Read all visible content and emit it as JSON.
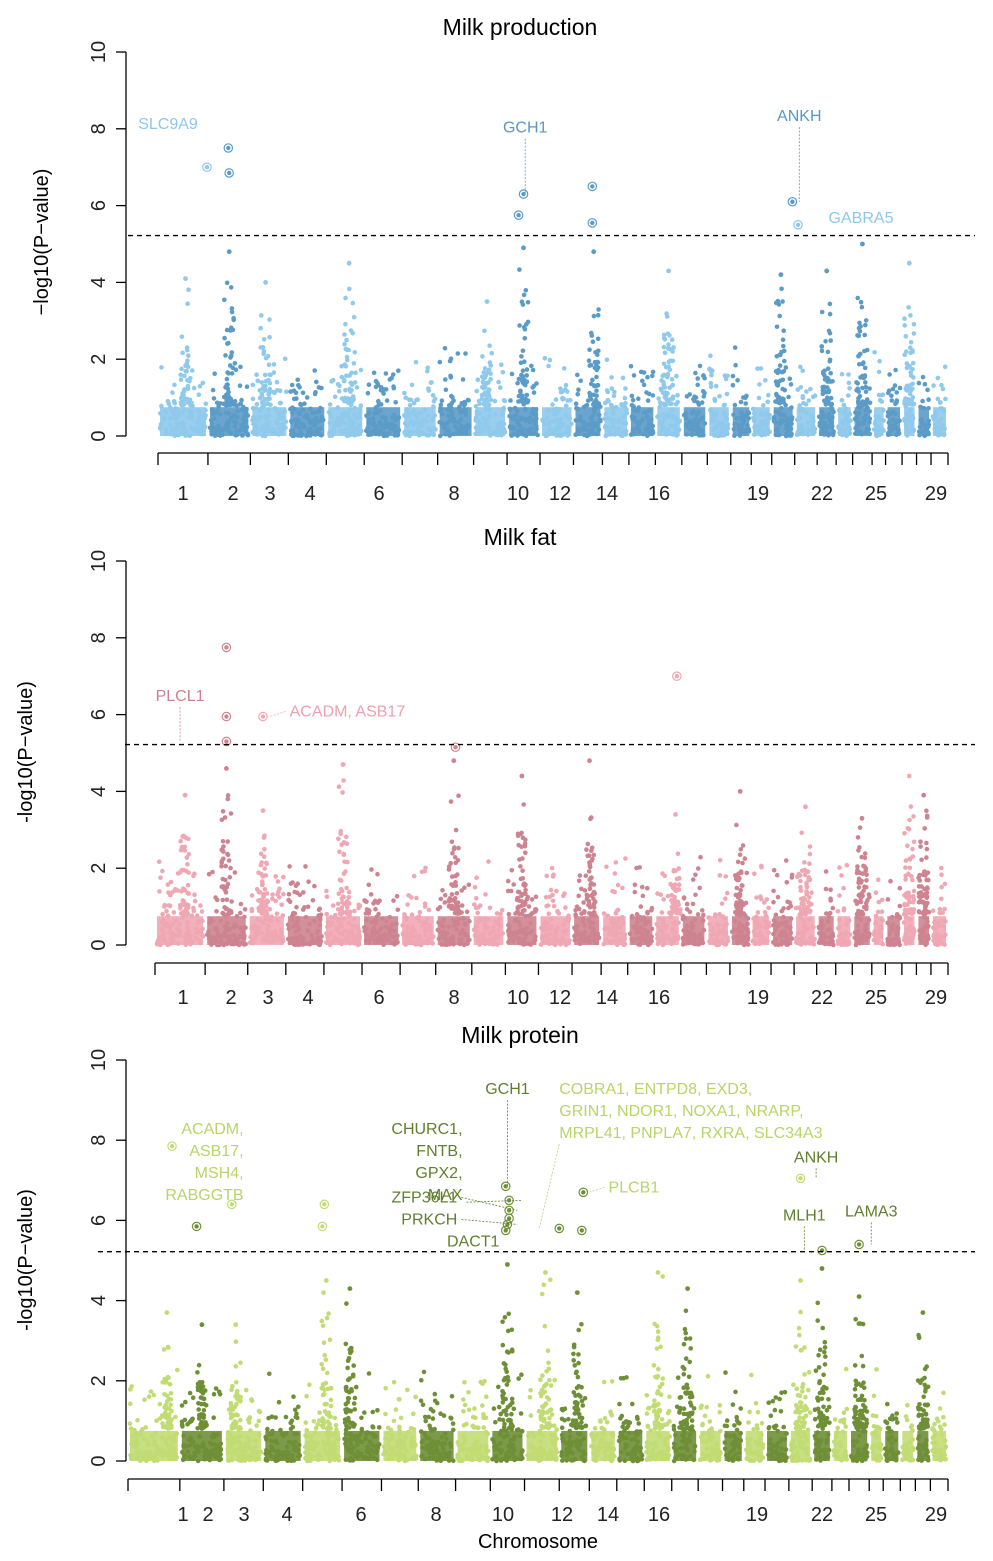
{
  "figure": {
    "xlabel": "Chromosome",
    "ylabel": "−log10(P−value)",
    "chromosomes": [
      {
        "n": 1,
        "w": 1.0
      },
      {
        "n": 2,
        "w": 0.85
      },
      {
        "n": 3,
        "w": 0.76
      },
      {
        "n": 4,
        "w": 0.76
      },
      {
        "n": 5,
        "w": 0.76
      },
      {
        "n": 6,
        "w": 0.76
      },
      {
        "n": 7,
        "w": 0.71
      },
      {
        "n": 8,
        "w": 0.72
      },
      {
        "n": 9,
        "w": 0.67
      },
      {
        "n": 10,
        "w": 0.66
      },
      {
        "n": 11,
        "w": 0.67
      },
      {
        "n": 12,
        "w": 0.58
      },
      {
        "n": 13,
        "w": 0.53
      },
      {
        "n": 14,
        "w": 0.53
      },
      {
        "n": 15,
        "w": 0.53
      },
      {
        "n": 16,
        "w": 0.51
      },
      {
        "n": 17,
        "w": 0.47
      },
      {
        "n": 18,
        "w": 0.41
      },
      {
        "n": 19,
        "w": 0.41
      },
      {
        "n": 20,
        "w": 0.46
      },
      {
        "n": 21,
        "w": 0.45
      },
      {
        "n": 22,
        "w": 0.38
      },
      {
        "n": 23,
        "w": 0.33
      },
      {
        "n": 24,
        "w": 0.39
      },
      {
        "n": 25,
        "w": 0.27
      },
      {
        "n": 26,
        "w": 0.33
      },
      {
        "n": 27,
        "w": 0.29
      },
      {
        "n": 28,
        "w": 0.29
      },
      {
        "n": 29,
        "w": 0.34
      }
    ],
    "tick_labels": [
      "1",
      "2",
      "3",
      "4",
      "6",
      "8",
      "10",
      "12",
      "14",
      "16",
      "19",
      "22",
      "25",
      "29"
    ]
  },
  "chart_data": [
    {
      "type": "scatter",
      "title": "Milk production",
      "xlabel": "",
      "ylabel": "−log10(P−value)",
      "ylim": [
        0,
        10
      ],
      "yticks": [
        0,
        2,
        4,
        6,
        8,
        10
      ],
      "threshold": 5.22,
      "colors": {
        "light": "#8fc9ec",
        "dark": "#5b9bc8",
        "label_light": "#8cc8ec",
        "label_dark": "#5a97c5"
      },
      "peaks": [
        {
          "chr": 1,
          "pos": 0.55,
          "ht": 4.1
        },
        {
          "chr": 2,
          "pos": 0.5,
          "ht": 4.8
        },
        {
          "chr": 3,
          "pos": 0.4,
          "ht": 4.0
        },
        {
          "chr": 5,
          "pos": 0.6,
          "ht": 4.5
        },
        {
          "chr": 9,
          "pos": 0.4,
          "ht": 3.5
        },
        {
          "chr": 10,
          "pos": 0.5,
          "ht": 4.9
        },
        {
          "chr": 12,
          "pos": 0.7,
          "ht": 4.8
        },
        {
          "chr": 15,
          "pos": 0.5,
          "ht": 4.3
        },
        {
          "chr": 20,
          "pos": 0.4,
          "ht": 4.2
        },
        {
          "chr": 22,
          "pos": 0.5,
          "ht": 4.3
        },
        {
          "chr": 24,
          "pos": 0.5,
          "ht": 5.0
        },
        {
          "chr": 27,
          "pos": 0.5,
          "ht": 4.5
        }
      ],
      "highlighted": [
        {
          "chr": 1,
          "pos": 0.98,
          "y": 7.0
        },
        {
          "chr": 2,
          "pos": 0.48,
          "y": 7.5
        },
        {
          "chr": 2,
          "pos": 0.5,
          "y": 6.85
        },
        {
          "chr": 10,
          "pos": 0.5,
          "y": 6.3
        },
        {
          "chr": 10,
          "pos": 0.35,
          "y": 5.75
        },
        {
          "chr": 12,
          "pos": 0.65,
          "y": 6.5
        },
        {
          "chr": 12,
          "pos": 0.65,
          "y": 5.55
        },
        {
          "chr": 20,
          "pos": 0.9,
          "y": 6.1
        },
        {
          "chr": 21,
          "pos": 0.15,
          "y": 5.5
        }
      ],
      "annotations": [
        {
          "text": "SLC9A9",
          "chr": 1,
          "pos": 0.2,
          "ly": 8.0,
          "py": 7.0,
          "tone": "light",
          "line": false,
          "anchor": "middle"
        },
        {
          "text": "GCH1",
          "chr": 10,
          "pos": 0.55,
          "ly": 7.9,
          "py": 6.3,
          "tone": "dark",
          "line": true,
          "anchor": "middle"
        },
        {
          "text": "ANKH",
          "chr": 20,
          "pos": 1.2,
          "ly": 8.2,
          "py": 6.1,
          "tone": "dark",
          "line": true,
          "anchor": "middle"
        },
        {
          "text": "GABRA5",
          "chr": 22,
          "pos": 0.6,
          "ly": 5.55,
          "py": 5.5,
          "tone": "light",
          "line": false,
          "anchor": "start"
        }
      ]
    },
    {
      "type": "scatter",
      "title": "Milk fat",
      "xlabel": "",
      "ylabel": "-log10(P−value)",
      "ylim": [
        0,
        10
      ],
      "yticks": [
        0,
        2,
        4,
        6,
        8,
        10
      ],
      "threshold": 5.22,
      "colors": {
        "light": "#f0a7b4",
        "dark": "#cd8490",
        "label_light": "#ef9fae",
        "label_dark": "#c98290"
      },
      "peaks": [
        {
          "chr": 1,
          "pos": 0.6,
          "ht": 3.9
        },
        {
          "chr": 2,
          "pos": 0.5,
          "ht": 4.6
        },
        {
          "chr": 3,
          "pos": 0.4,
          "ht": 3.5
        },
        {
          "chr": 5,
          "pos": 0.5,
          "ht": 4.7
        },
        {
          "chr": 8,
          "pos": 0.5,
          "ht": 4.8
        },
        {
          "chr": 10,
          "pos": 0.5,
          "ht": 4.4
        },
        {
          "chr": 12,
          "pos": 0.6,
          "ht": 4.8
        },
        {
          "chr": 15,
          "pos": 0.8,
          "ht": 3.4
        },
        {
          "chr": 18,
          "pos": 0.5,
          "ht": 4.0
        },
        {
          "chr": 21,
          "pos": 0.5,
          "ht": 3.6
        },
        {
          "chr": 24,
          "pos": 0.5,
          "ht": 3.3
        },
        {
          "chr": 27,
          "pos": 0.5,
          "ht": 4.4
        },
        {
          "chr": 28,
          "pos": 0.5,
          "ht": 3.9
        }
      ],
      "highlighted": [
        {
          "chr": 2,
          "pos": 0.5,
          "y": 7.75
        },
        {
          "chr": 2,
          "pos": 0.5,
          "y": 5.95
        },
        {
          "chr": 2,
          "pos": 0.5,
          "y": 5.3
        },
        {
          "chr": 3,
          "pos": 0.4,
          "y": 5.95
        },
        {
          "chr": 8,
          "pos": 0.55,
          "y": 5.15
        },
        {
          "chr": 15,
          "pos": 0.85,
          "y": 7.0
        }
      ],
      "annotations": [
        {
          "text": "PLCL1",
          "chr": 1,
          "pos": 0.5,
          "ly": 6.35,
          "py": 5.3,
          "tone": "dark",
          "line": true,
          "anchor": "middle"
        },
        {
          "text": "ACADM, ASB17",
          "chr": 4,
          "pos": 0.1,
          "ly": 5.95,
          "py": 5.95,
          "tone": "light",
          "line": true,
          "anchor": "start"
        }
      ]
    },
    {
      "type": "scatter",
      "title": "Milk protein",
      "xlabel": "Chromosome",
      "ylabel": "-log10(P−value)",
      "ylim": [
        0,
        10
      ],
      "yticks": [
        0,
        2,
        4,
        6,
        8,
        10
      ],
      "threshold": 5.22,
      "colors": {
        "light": "#c2dc74",
        "dark": "#6f8f37",
        "label_light": "#b9d468",
        "label_dark": "#617f2e"
      },
      "peaks": [
        {
          "chr": 1,
          "pos": 0.75,
          "ht": 3.7
        },
        {
          "chr": 2,
          "pos": 0.5,
          "ht": 3.4
        },
        {
          "chr": 3,
          "pos": 0.3,
          "ht": 3.4
        },
        {
          "chr": 5,
          "pos": 0.6,
          "ht": 4.5
        },
        {
          "chr": 6,
          "pos": 0.2,
          "ht": 4.3
        },
        {
          "chr": 10,
          "pos": 0.5,
          "ht": 4.9
        },
        {
          "chr": 11,
          "pos": 0.6,
          "ht": 4.7
        },
        {
          "chr": 12,
          "pos": 0.6,
          "ht": 4.2
        },
        {
          "chr": 15,
          "pos": 0.5,
          "ht": 4.7
        },
        {
          "chr": 16,
          "pos": 0.6,
          "ht": 4.3
        },
        {
          "chr": 21,
          "pos": 0.5,
          "ht": 4.5
        },
        {
          "chr": 22,
          "pos": 0.5,
          "ht": 4.8
        },
        {
          "chr": 24,
          "pos": 0.5,
          "ht": 4.1
        },
        {
          "chr": 28,
          "pos": 0.5,
          "ht": 3.7
        }
      ],
      "highlighted": [
        {
          "chr": 1,
          "pos": 0.85,
          "y": 7.85
        },
        {
          "chr": 2,
          "pos": 0.38,
          "y": 5.85
        },
        {
          "chr": 3,
          "pos": 0.2,
          "y": 6.4
        },
        {
          "chr": 5,
          "pos": 0.55,
          "y": 6.4
        },
        {
          "chr": 5,
          "pos": 0.5,
          "y": 5.85
        },
        {
          "chr": 10,
          "pos": 0.45,
          "y": 6.85
        },
        {
          "chr": 10,
          "pos": 0.55,
          "y": 6.5
        },
        {
          "chr": 10,
          "pos": 0.55,
          "y": 6.25
        },
        {
          "chr": 10,
          "pos": 0.55,
          "y": 6.05
        },
        {
          "chr": 10,
          "pos": 0.5,
          "y": 5.9
        },
        {
          "chr": 10,
          "pos": 0.45,
          "y": 5.75
        },
        {
          "chr": 12,
          "pos": 0.0,
          "y": 5.8
        },
        {
          "chr": 12,
          "pos": 0.75,
          "y": 5.75
        },
        {
          "chr": 12,
          "pos": 0.8,
          "y": 6.7
        },
        {
          "chr": 21,
          "pos": 0.5,
          "y": 7.05
        },
        {
          "chr": 22,
          "pos": 0.5,
          "y": 5.25
        },
        {
          "chr": 24,
          "pos": 0.5,
          "y": 5.4
        }
      ],
      "annotations": [
        {
          "text": "ACADM,\nASB17,\nMSH4,\nRABGGTB",
          "chr": 3,
          "pos": 0.5,
          "ly": 8.15,
          "py": 6.4,
          "tone": "light",
          "line": false,
          "anchor": "end"
        },
        {
          "text": "CHURC1,\nFNTB,\nGPX2,\nMAX",
          "chr": 9,
          "pos": 0.2,
          "ly": 8.15,
          "py": 6.5,
          "tone": "dark",
          "line": true,
          "anchor": "end"
        },
        {
          "text": "GCH1",
          "chr": 10,
          "pos": 0.5,
          "ly": 9.15,
          "py": 6.85,
          "tone": "dark",
          "line": true,
          "anchor": "middle"
        },
        {
          "text": "ZFP36L1",
          "chr": 9,
          "pos": 0.05,
          "ly": 6.45,
          "py": 6.25,
          "tone": "dark",
          "line": true,
          "anchor": "end"
        },
        {
          "text": "PRKCH",
          "chr": 9,
          "pos": 0.05,
          "ly": 5.9,
          "py": 5.9,
          "tone": "dark",
          "line": true,
          "anchor": "end"
        },
        {
          "text": "DACT1",
          "chr": 10,
          "pos": -0.5,
          "ly": 5.35,
          "py": 5.75,
          "tone": "dark",
          "line": false,
          "anchor": "middle"
        },
        {
          "text": "COBRA1, ENTPD8, EXD3,\nGRIN1, NDOR1, NOXA1, NRARP,\nMRPL41, PNPLA7, RXRA, SLC34A3",
          "chr": 12,
          "pos": 0.0,
          "ly": 9.15,
          "py": 5.8,
          "tone": "light",
          "line": true,
          "anchor": "start"
        },
        {
          "text": "PLCB1",
          "chr": 13,
          "pos": 0.7,
          "ly": 6.7,
          "py": 6.7,
          "tone": "light",
          "line": true,
          "anchor": "start"
        },
        {
          "text": "ANKH",
          "chr": 22,
          "pos": 0.2,
          "ly": 7.45,
          "py": 7.05,
          "tone": "dark",
          "line": true,
          "anchor": "middle"
        },
        {
          "text": "MLH1",
          "chr": 22,
          "pos": -0.4,
          "ly": 6.0,
          "py": 5.25,
          "tone": "dark",
          "line": true,
          "anchor": "middle"
        },
        {
          "text": "LAMA3",
          "chr": 24,
          "pos": 1.1,
          "ly": 6.1,
          "py": 5.4,
          "tone": "dark",
          "line": true,
          "anchor": "middle"
        }
      ]
    }
  ]
}
